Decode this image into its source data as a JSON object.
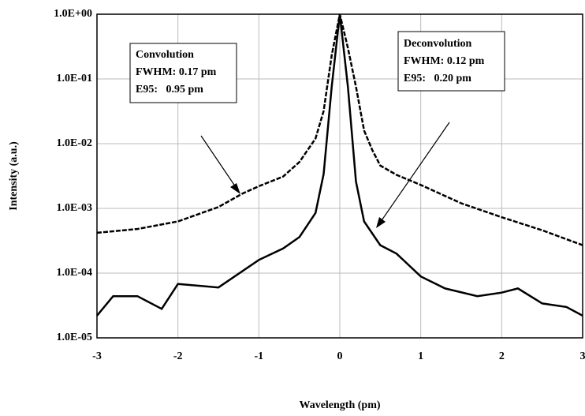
{
  "chart_data": {
    "type": "line",
    "x_label": "Wavelength (pm)",
    "y_label": "Intensity (a.u.)",
    "xlim": [
      -3,
      3
    ],
    "xticks": [
      -3,
      -2,
      -1,
      0,
      1,
      2,
      3
    ],
    "ylim": [
      1e-05,
      1
    ],
    "log_y": true,
    "yticks": [
      {
        "value": 1e-05,
        "label": "1.0E-05"
      },
      {
        "value": 0.0001,
        "label": "1.0E-04"
      },
      {
        "value": 0.001,
        "label": "1.0E-03"
      },
      {
        "value": 0.01,
        "label": "1.0E-02"
      },
      {
        "value": 0.1,
        "label": "1.0E-01"
      },
      {
        "value": 1,
        "label": "1.0E+00"
      }
    ],
    "grid": true,
    "series": [
      {
        "name": "Convolution",
        "color": "#000000",
        "linestyle": "dashed",
        "x": [
          -3,
          -2.5,
          -2,
          -1.5,
          -1.2,
          -1,
          -0.7,
          -0.5,
          -0.3,
          -0.2,
          -0.1,
          0,
          0.1,
          0.2,
          0.3,
          0.4,
          0.5,
          0.7,
          1,
          1.5,
          2,
          2.5,
          3
        ],
        "values": [
          0.00042,
          0.00048,
          0.00063,
          0.00105,
          0.0017,
          0.0022,
          0.0031,
          0.0052,
          0.012,
          0.032,
          0.23,
          1,
          0.3,
          0.076,
          0.016,
          0.008,
          0.0046,
          0.0033,
          0.0023,
          0.0012,
          0.00073,
          0.00046,
          0.00027
        ]
      },
      {
        "name": "Deconvolution",
        "color": "#000000",
        "linestyle": "solid",
        "x": [
          -3,
          -2.8,
          -2.5,
          -2.2,
          -2,
          -1.5,
          -1,
          -0.7,
          -0.5,
          -0.3,
          -0.2,
          -0.1,
          0,
          0.1,
          0.2,
          0.3,
          0.5,
          0.7,
          1,
          1.3,
          1.7,
          2,
          2.2,
          2.5,
          2.8,
          3
        ],
        "values": [
          2.2e-05,
          4.4e-05,
          4.4e-05,
          2.8e-05,
          6.8e-05,
          6e-05,
          0.00016,
          0.00024,
          0.00036,
          0.00085,
          0.0034,
          0.075,
          1,
          0.075,
          0.0026,
          0.00063,
          0.00027,
          0.0002,
          8.9e-05,
          5.8e-05,
          4.4e-05,
          5e-05,
          5.8e-05,
          3.4e-05,
          3e-05,
          2.2e-05
        ]
      }
    ],
    "annotations": [
      {
        "lines": [
          "Convolution",
          "FWHM: 0.17 pm",
          "E95:   0.95 pm"
        ]
      },
      {
        "lines": [
          "Deconvolution",
          "FWHM: 0.12 pm",
          "E95:   0.20 pm"
        ]
      }
    ]
  }
}
